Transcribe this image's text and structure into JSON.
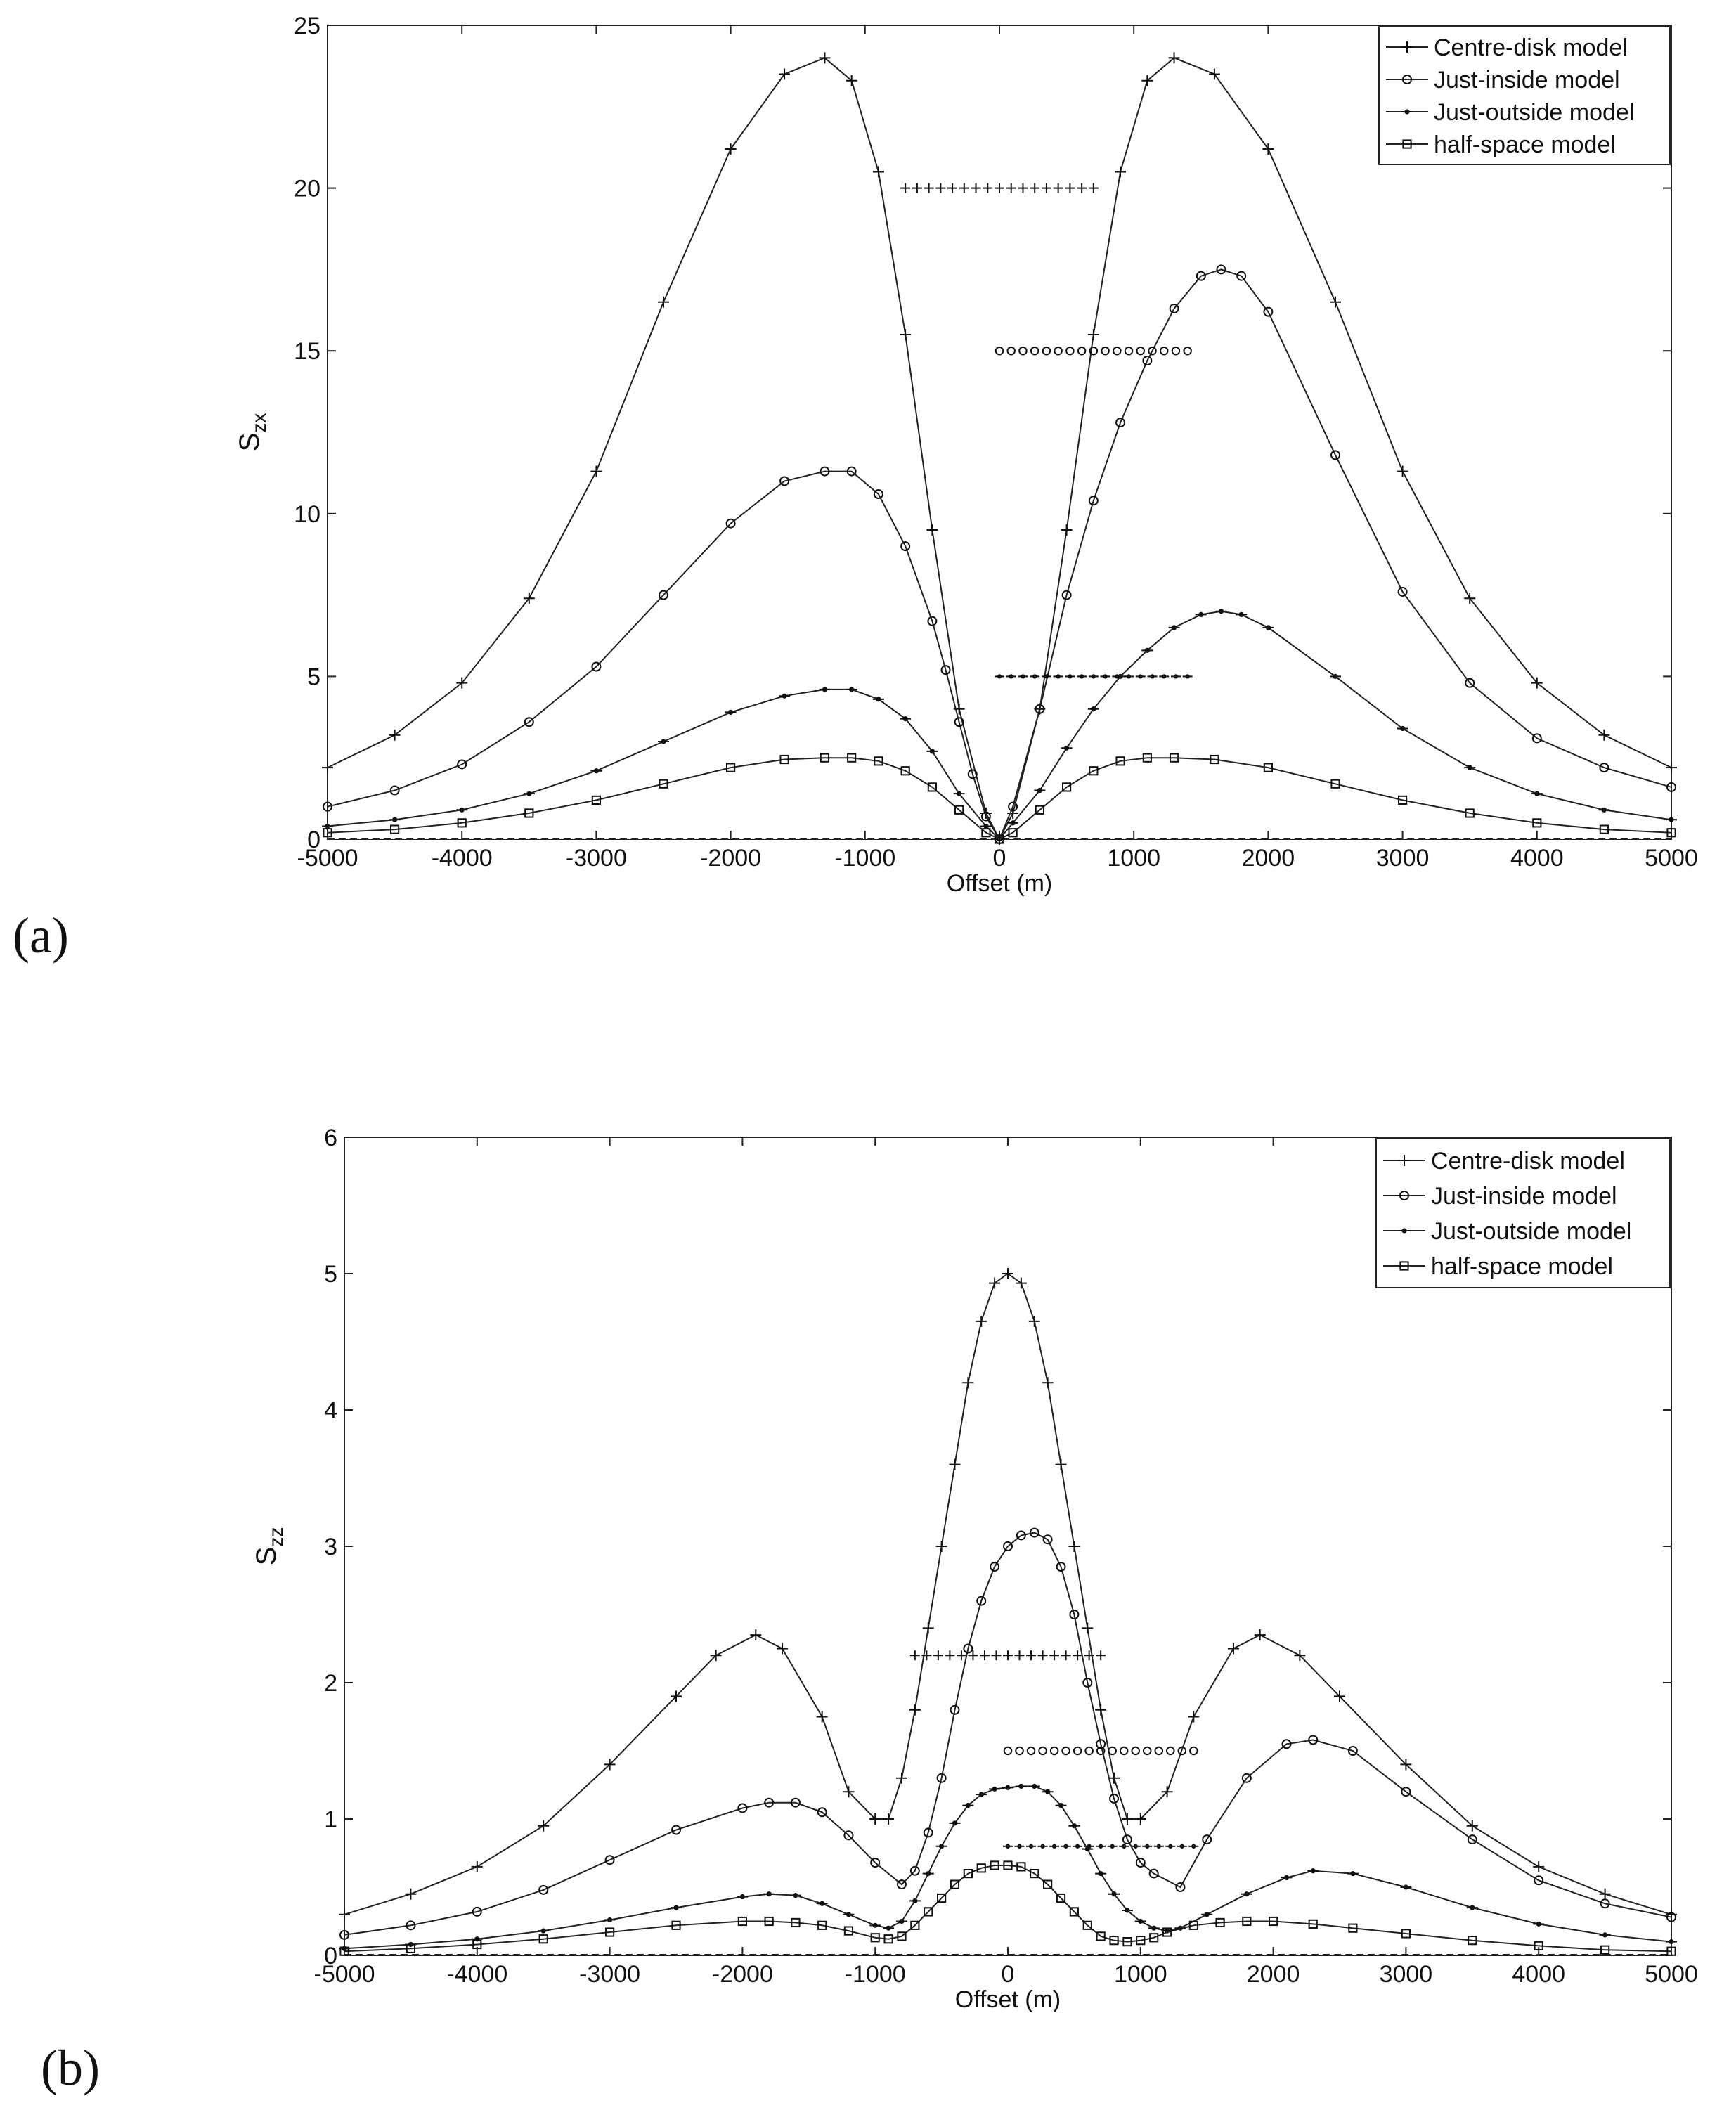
{
  "figure": {
    "panels": [
      {
        "label": "(a)",
        "chart_data": {
          "type": "line",
          "xlabel": "Offset (m)",
          "ylabel_base": "S",
          "ylabel_sub": "zx",
          "xlim": [
            -5000,
            5000
          ],
          "ylim": [
            0,
            25
          ],
          "xticks": [
            -5000,
            -4000,
            -3000,
            -2000,
            -1000,
            0,
            1000,
            2000,
            3000,
            4000,
            5000
          ],
          "yticks": [
            0,
            5,
            10,
            15,
            20,
            25
          ],
          "grid": false,
          "legend_position": "top-right",
          "series": [
            {
              "name": "Centre-disk model",
              "marker": "plus",
              "x": [
                -5000,
                -4500,
                -4000,
                -3500,
                -3000,
                -2500,
                -2000,
                -1600,
                -1300,
                -1100,
                -900,
                -700,
                -500,
                -300,
                -100,
                0,
                100,
                300,
                500,
                700,
                900,
                1100,
                1300,
                1600,
                2000,
                2500,
                3000,
                3500,
                4000,
                4500,
                5000
              ],
              "y": [
                2.2,
                3.2,
                4.8,
                7.4,
                11.3,
                16.5,
                21.2,
                23.5,
                24.0,
                23.3,
                20.5,
                15.5,
                9.5,
                4.0,
                0.8,
                0.0,
                0.8,
                4.0,
                9.5,
                15.5,
                20.5,
                23.3,
                24.0,
                23.5,
                21.2,
                16.5,
                11.3,
                7.4,
                4.8,
                3.2,
                2.2
              ]
            },
            {
              "name": "Just-inside model",
              "marker": "circle",
              "x": [
                -5000,
                -4500,
                -4000,
                -3500,
                -3000,
                -2500,
                -2000,
                -1600,
                -1300,
                -1100,
                -900,
                -700,
                -500,
                -400,
                -300,
                -200,
                -100,
                0,
                100,
                300,
                500,
                700,
                900,
                1100,
                1300,
                1500,
                1650,
                1800,
                2000,
                2500,
                3000,
                3500,
                4000,
                4500,
                5000
              ],
              "y": [
                1.0,
                1.5,
                2.3,
                3.6,
                5.3,
                7.5,
                9.7,
                11.0,
                11.3,
                11.3,
                10.6,
                9.0,
                6.7,
                5.2,
                3.6,
                2.0,
                0.7,
                0.0,
                1.0,
                4.0,
                7.5,
                10.4,
                12.8,
                14.7,
                16.3,
                17.3,
                17.5,
                17.3,
                16.2,
                11.8,
                7.6,
                4.8,
                3.1,
                2.2,
                1.6
              ]
            },
            {
              "name": "Just-outside model",
              "marker": "dot",
              "x": [
                -5000,
                -4500,
                -4000,
                -3500,
                -3000,
                -2500,
                -2000,
                -1600,
                -1300,
                -1100,
                -900,
                -700,
                -500,
                -300,
                -100,
                0,
                100,
                300,
                500,
                700,
                900,
                1100,
                1300,
                1500,
                1650,
                1800,
                2000,
                2500,
                3000,
                3500,
                4000,
                4500,
                5000
              ],
              "y": [
                0.4,
                0.6,
                0.9,
                1.4,
                2.1,
                3.0,
                3.9,
                4.4,
                4.6,
                4.6,
                4.3,
                3.7,
                2.7,
                1.4,
                0.4,
                0.0,
                0.5,
                1.5,
                2.8,
                4.0,
                5.0,
                5.8,
                6.5,
                6.9,
                7.0,
                6.9,
                6.5,
                5.0,
                3.4,
                2.2,
                1.4,
                0.9,
                0.6
              ]
            },
            {
              "name": "half-space model",
              "marker": "square",
              "x": [
                -5000,
                -4500,
                -4000,
                -3500,
                -3000,
                -2500,
                -2000,
                -1600,
                -1300,
                -1100,
                -900,
                -700,
                -500,
                -300,
                -100,
                0,
                100,
                300,
                500,
                700,
                900,
                1100,
                1300,
                1600,
                2000,
                2500,
                3000,
                3500,
                4000,
                4500,
                5000
              ],
              "y": [
                0.2,
                0.3,
                0.5,
                0.8,
                1.2,
                1.7,
                2.2,
                2.45,
                2.5,
                2.5,
                2.4,
                2.1,
                1.6,
                0.9,
                0.2,
                0.0,
                0.2,
                0.9,
                1.6,
                2.1,
                2.4,
                2.5,
                2.5,
                2.45,
                2.2,
                1.7,
                1.2,
                0.8,
                0.5,
                0.3,
                0.2
              ]
            }
          ],
          "disk_markers": [
            {
              "marker": "plus",
              "x_range": [
                -700,
                700
              ],
              "y": 20
            },
            {
              "marker": "circle",
              "x_range": [
                0,
                1400
              ],
              "y": 15
            },
            {
              "marker": "dot",
              "x_range": [
                0,
                1400
              ],
              "y": 5
            }
          ]
        }
      },
      {
        "label": "(b)",
        "chart_data": {
          "type": "line",
          "xlabel": "Offset (m)",
          "ylabel_base": "S",
          "ylabel_sub": "zz",
          "xlim": [
            -5000,
            5000
          ],
          "ylim": [
            0,
            6
          ],
          "xticks": [
            -5000,
            -4000,
            -3000,
            -2000,
            -1000,
            0,
            1000,
            2000,
            3000,
            4000,
            5000
          ],
          "yticks": [
            0,
            1,
            2,
            3,
            4,
            5,
            6
          ],
          "grid": false,
          "legend_position": "top-right",
          "series": [
            {
              "name": "Centre-disk model",
              "marker": "plus",
              "x": [
                -5000,
                -4500,
                -4000,
                -3500,
                -3000,
                -2500,
                -2200,
                -1900,
                -1700,
                -1400,
                -1200,
                -1000,
                -900,
                -800,
                -700,
                -600,
                -500,
                -400,
                -300,
                -200,
                -100,
                0,
                100,
                200,
                300,
                400,
                500,
                600,
                700,
                800,
                900,
                1000,
                1200,
                1400,
                1700,
                1900,
                2200,
                2500,
                3000,
                3500,
                4000,
                4500,
                5000
              ],
              "y": [
                0.3,
                0.45,
                0.65,
                0.95,
                1.4,
                1.9,
                2.2,
                2.35,
                2.25,
                1.75,
                1.2,
                1.0,
                1.0,
                1.3,
                1.8,
                2.4,
                3.0,
                3.6,
                4.2,
                4.65,
                4.93,
                5.0,
                4.93,
                4.65,
                4.2,
                3.6,
                3.0,
                2.4,
                1.8,
                1.3,
                1.0,
                1.0,
                1.2,
                1.75,
                2.25,
                2.35,
                2.2,
                1.9,
                1.4,
                0.95,
                0.65,
                0.45,
                0.3
              ]
            },
            {
              "name": "Just-inside model",
              "marker": "circle",
              "x": [
                -5000,
                -4500,
                -4000,
                -3500,
                -3000,
                -2500,
                -2000,
                -1800,
                -1600,
                -1400,
                -1200,
                -1000,
                -800,
                -700,
                -600,
                -500,
                -400,
                -300,
                -200,
                -100,
                0,
                100,
                200,
                300,
                400,
                500,
                600,
                700,
                800,
                900,
                1000,
                1100,
                1300,
                1500,
                1800,
                2100,
                2300,
                2600,
                3000,
                3500,
                4000,
                4500,
                5000
              ],
              "y": [
                0.15,
                0.22,
                0.32,
                0.48,
                0.7,
                0.92,
                1.08,
                1.12,
                1.12,
                1.05,
                0.88,
                0.68,
                0.52,
                0.62,
                0.9,
                1.3,
                1.8,
                2.25,
                2.6,
                2.85,
                3.0,
                3.08,
                3.1,
                3.05,
                2.85,
                2.5,
                2.0,
                1.55,
                1.15,
                0.85,
                0.68,
                0.6,
                0.5,
                0.85,
                1.3,
                1.55,
                1.58,
                1.5,
                1.2,
                0.85,
                0.55,
                0.38,
                0.28
              ]
            },
            {
              "name": "Just-outside model",
              "marker": "dot",
              "x": [
                -5000,
                -4500,
                -4000,
                -3500,
                -3000,
                -2500,
                -2000,
                -1800,
                -1600,
                -1400,
                -1200,
                -1000,
                -900,
                -800,
                -700,
                -600,
                -500,
                -400,
                -300,
                -200,
                -100,
                0,
                100,
                200,
                300,
                400,
                500,
                600,
                700,
                800,
                900,
                1000,
                1100,
                1200,
                1300,
                1500,
                1800,
                2100,
                2300,
                2600,
                3000,
                3500,
                4000,
                4500,
                5000
              ],
              "y": [
                0.05,
                0.08,
                0.12,
                0.18,
                0.26,
                0.35,
                0.43,
                0.45,
                0.44,
                0.38,
                0.3,
                0.22,
                0.2,
                0.25,
                0.4,
                0.6,
                0.8,
                0.97,
                1.1,
                1.18,
                1.22,
                1.23,
                1.24,
                1.24,
                1.2,
                1.1,
                0.95,
                0.78,
                0.6,
                0.45,
                0.33,
                0.25,
                0.2,
                0.18,
                0.2,
                0.3,
                0.45,
                0.57,
                0.62,
                0.6,
                0.5,
                0.35,
                0.23,
                0.15,
                0.1
              ]
            },
            {
              "name": "half-space model",
              "marker": "square",
              "x": [
                -5000,
                -4500,
                -4000,
                -3500,
                -3000,
                -2500,
                -2000,
                -1800,
                -1600,
                -1400,
                -1200,
                -1000,
                -900,
                -800,
                -700,
                -600,
                -500,
                -400,
                -300,
                -200,
                -100,
                0,
                100,
                200,
                300,
                400,
                500,
                600,
                700,
                800,
                900,
                1000,
                1100,
                1200,
                1400,
                1600,
                1800,
                2000,
                2300,
                2600,
                3000,
                3500,
                4000,
                4500,
                5000
              ],
              "y": [
                0.03,
                0.05,
                0.08,
                0.12,
                0.17,
                0.22,
                0.25,
                0.25,
                0.24,
                0.22,
                0.18,
                0.13,
                0.12,
                0.14,
                0.22,
                0.32,
                0.42,
                0.52,
                0.6,
                0.64,
                0.66,
                0.66,
                0.65,
                0.6,
                0.52,
                0.42,
                0.32,
                0.22,
                0.14,
                0.11,
                0.1,
                0.11,
                0.13,
                0.17,
                0.22,
                0.24,
                0.25,
                0.25,
                0.23,
                0.2,
                0.16,
                0.11,
                0.07,
                0.04,
                0.03
              ]
            }
          ],
          "disk_markers": [
            {
              "marker": "plus",
              "x_range": [
                -700,
                700
              ],
              "y": 2.2
            },
            {
              "marker": "circle",
              "x_range": [
                0,
                1400
              ],
              "y": 1.5
            },
            {
              "marker": "dot",
              "x_range": [
                0,
                1400
              ],
              "y": 0.8
            }
          ]
        }
      }
    ]
  }
}
